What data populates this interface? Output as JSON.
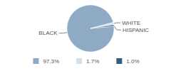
{
  "chart_data": {
    "type": "pie",
    "categories": [
      "BLACK",
      "WHITE",
      "HISPANIC"
    ],
    "values": [
      97.3,
      1.7,
      1.0
    ],
    "value_labels": [
      "97.3%",
      "1.7%",
      "1.0%"
    ],
    "colors": [
      "#8eaac5",
      "#d3dfea",
      "#2f5d82"
    ],
    "legend": "bottom"
  }
}
